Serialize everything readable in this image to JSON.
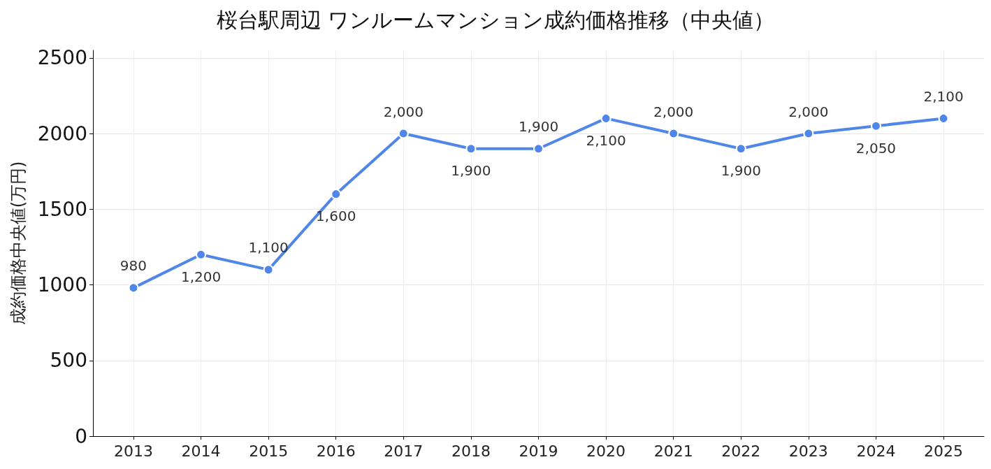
{
  "chart_data": {
    "type": "line",
    "title": "桜台駅周辺 ワンルームマンション成約価格推移（中央値）",
    "ylabel": "成約価格中央値(万円)",
    "x": [
      2013,
      2014,
      2015,
      2016,
      2017,
      2018,
      2019,
      2020,
      2021,
      2022,
      2023,
      2024,
      2025
    ],
    "series": [
      {
        "color": "#4f86e8",
        "values": [
          980,
          1200,
          1100,
          1600,
          2000,
          1900,
          1900,
          2100,
          2000,
          1900,
          2000,
          2050,
          2100
        ],
        "value_labels": [
          "980",
          "1,200",
          "1,100",
          "1,600",
          "2,000",
          "1,900",
          "1,900",
          "2,100",
          "2,000",
          "1,900",
          "2,000",
          "2,050",
          "2,100"
        ]
      }
    ],
    "xlim": [
      2012.4,
      2025.6
    ],
    "xticks": [
      2013,
      2014,
      2015,
      2016,
      2017,
      2018,
      2019,
      2020,
      2021,
      2022,
      2023,
      2024,
      2025
    ],
    "ylim": [
      0,
      2550
    ],
    "yticks": [
      0,
      500,
      1000,
      1500,
      2000,
      2500
    ],
    "grid": true,
    "marker": "circle",
    "line_style": "solid"
  }
}
